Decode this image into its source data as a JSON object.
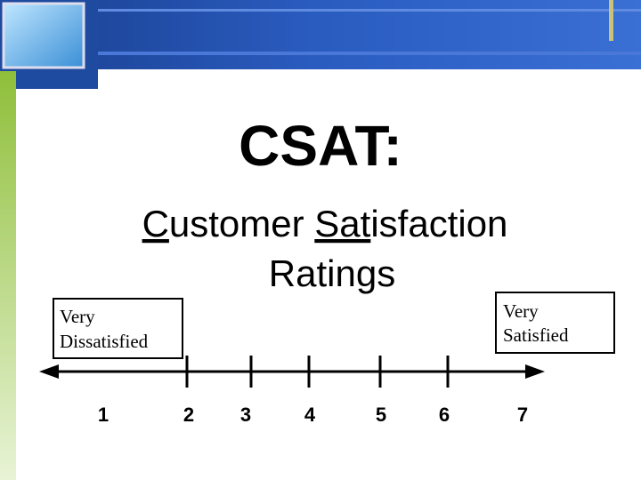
{
  "title": "CSAT:",
  "subtitle": {
    "line1": [
      "C",
      "ustomer ",
      "Sat",
      "isfaction"
    ],
    "line2": "Ratings"
  },
  "anchors": {
    "low": [
      "Very",
      "Dissatisfied"
    ],
    "high": [
      "Very",
      "Satisfied"
    ]
  },
  "scale": [
    1,
    2,
    3,
    4,
    5,
    6,
    7
  ]
}
